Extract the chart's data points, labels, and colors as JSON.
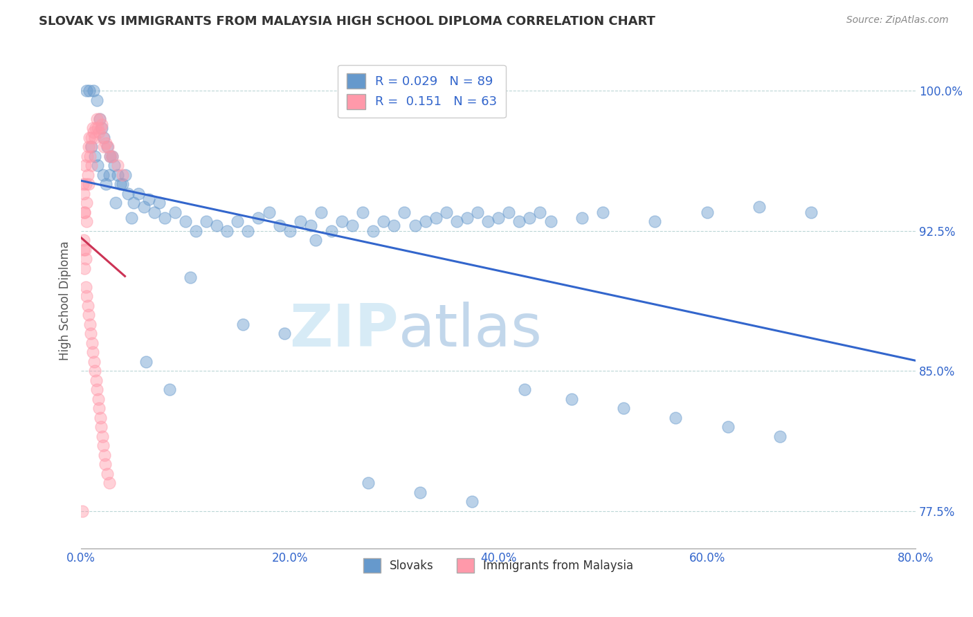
{
  "title": "SLOVAK VS IMMIGRANTS FROM MALAYSIA HIGH SCHOOL DIPLOMA CORRELATION CHART",
  "source": "Source: ZipAtlas.com",
  "ylabel": "High School Diploma",
  "x_min": 0.0,
  "x_max": 80.0,
  "y_min": 75.5,
  "y_max": 102.0,
  "y_ticks": [
    77.5,
    85.0,
    92.5,
    100.0
  ],
  "x_ticks": [
    0.0,
    20.0,
    40.0,
    60.0,
    80.0
  ],
  "blue_R": 0.029,
  "blue_N": 89,
  "pink_R": 0.151,
  "pink_N": 63,
  "blue_color": "#6699CC",
  "pink_color": "#FF99AA",
  "blue_line_color": "#3366CC",
  "pink_line_color": "#CC3355",
  "watermark_zip": "ZIP",
  "watermark_atlas": "atlas",
  "legend_labels": [
    "Slovaks",
    "Immigrants from Malaysia"
  ],
  "blue_scatter_x": [
    0.5,
    0.8,
    1.2,
    1.5,
    1.8,
    2.0,
    2.2,
    2.5,
    2.8,
    3.0,
    3.2,
    3.5,
    3.8,
    4.0,
    4.2,
    4.5,
    5.0,
    5.5,
    6.0,
    6.5,
    7.0,
    7.5,
    8.0,
    9.0,
    10.0,
    11.0,
    12.0,
    13.0,
    14.0,
    15.0,
    16.0,
    17.0,
    18.0,
    19.0,
    20.0,
    21.0,
    22.0,
    23.0,
    24.0,
    25.0,
    26.0,
    27.0,
    28.0,
    29.0,
    30.0,
    31.0,
    32.0,
    33.0,
    34.0,
    35.0,
    36.0,
    37.0,
    38.0,
    39.0,
    40.0,
    41.0,
    42.0,
    43.0,
    44.0,
    45.0,
    48.0,
    50.0,
    55.0,
    60.0,
    65.0,
    70.0,
    1.0,
    1.3,
    1.6,
    2.1,
    2.4,
    2.7,
    3.3,
    4.8,
    6.2,
    8.5,
    10.5,
    15.5,
    19.5,
    22.5,
    27.5,
    32.5,
    37.5,
    42.5,
    47.0,
    52.0,
    57.0,
    62.0,
    67.0
  ],
  "blue_scatter_y": [
    100.0,
    100.0,
    100.0,
    99.5,
    98.5,
    98.0,
    97.5,
    97.0,
    96.5,
    96.5,
    96.0,
    95.5,
    95.0,
    95.0,
    95.5,
    94.5,
    94.0,
    94.5,
    93.8,
    94.2,
    93.5,
    94.0,
    93.2,
    93.5,
    93.0,
    92.5,
    93.0,
    92.8,
    92.5,
    93.0,
    92.5,
    93.2,
    93.5,
    92.8,
    92.5,
    93.0,
    92.8,
    93.5,
    92.5,
    93.0,
    92.8,
    93.5,
    92.5,
    93.0,
    92.8,
    93.5,
    92.8,
    93.0,
    93.2,
    93.5,
    93.0,
    93.2,
    93.5,
    93.0,
    93.2,
    93.5,
    93.0,
    93.2,
    93.5,
    93.0,
    93.2,
    93.5,
    93.0,
    93.5,
    93.8,
    93.5,
    97.0,
    96.5,
    96.0,
    95.5,
    95.0,
    95.5,
    94.0,
    93.2,
    85.5,
    84.0,
    90.0,
    87.5,
    87.0,
    92.0,
    79.0,
    78.5,
    78.0,
    84.0,
    83.5,
    83.0,
    82.5,
    82.0,
    81.5
  ],
  "pink_scatter_x": [
    0.1,
    0.2,
    0.25,
    0.3,
    0.35,
    0.4,
    0.45,
    0.5,
    0.55,
    0.6,
    0.65,
    0.7,
    0.75,
    0.8,
    0.85,
    0.9,
    0.95,
    1.0,
    1.1,
    1.2,
    1.3,
    1.4,
    1.5,
    1.6,
    1.7,
    1.8,
    1.9,
    2.0,
    2.1,
    2.2,
    2.4,
    2.6,
    2.8,
    3.0,
    3.5,
    4.0,
    0.22,
    0.32,
    0.42,
    0.52,
    0.62,
    0.72,
    0.82,
    0.92,
    1.02,
    1.12,
    1.22,
    1.32,
    1.42,
    1.52,
    1.62,
    1.72,
    1.82,
    1.92,
    2.02,
    2.12,
    2.22,
    2.32,
    2.52,
    2.72,
    0.28,
    0.38,
    0.48
  ],
  "pink_scatter_y": [
    77.5,
    95.0,
    94.5,
    93.5,
    93.5,
    96.0,
    95.0,
    94.0,
    93.0,
    96.5,
    95.5,
    95.0,
    97.0,
    97.5,
    96.5,
    97.0,
    96.0,
    97.5,
    98.0,
    97.8,
    97.5,
    98.0,
    98.5,
    98.0,
    97.8,
    98.5,
    98.0,
    98.2,
    97.5,
    97.0,
    97.2,
    97.0,
    96.5,
    96.5,
    96.0,
    95.5,
    91.5,
    90.5,
    89.5,
    89.0,
    88.5,
    88.0,
    87.5,
    87.0,
    86.5,
    86.0,
    85.5,
    85.0,
    84.5,
    84.0,
    83.5,
    83.0,
    82.5,
    82.0,
    81.5,
    81.0,
    80.5,
    80.0,
    79.5,
    79.0,
    92.0,
    91.5,
    91.0
  ]
}
